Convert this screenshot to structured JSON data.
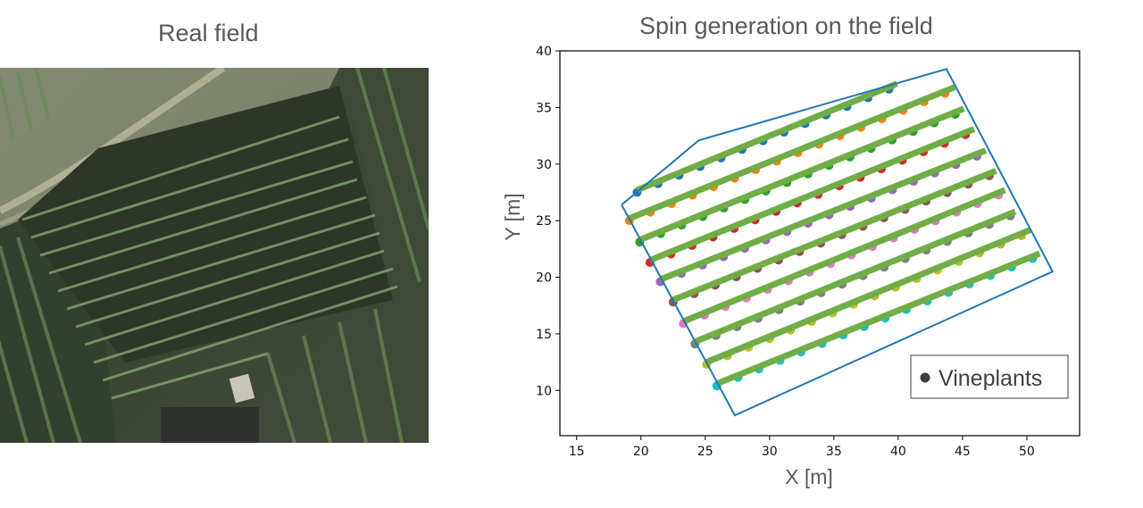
{
  "panels": {
    "left": {
      "title": "Real field",
      "image_description": "aerial satellite photo of vineyard with diagonal rows"
    },
    "right": {
      "title": "Spin generation on the field"
    }
  },
  "chart_data": {
    "type": "scatter",
    "title": "Spin generation on the field",
    "xlabel": "X [m]",
    "ylabel": "Y [m]",
    "xlim": [
      13.7,
      54.1
    ],
    "ylim": [
      6.0,
      40.0
    ],
    "xticks": [
      15,
      20,
      25,
      30,
      35,
      40,
      45,
      50
    ],
    "yticks": [
      10,
      15,
      20,
      25,
      30,
      35,
      40
    ],
    "grid": false,
    "legend": {
      "position": "lower right",
      "entries": [
        {
          "label": "Vineplants",
          "marker": "circle",
          "color": "#404040"
        }
      ]
    },
    "field_boundary": {
      "color": "#1f77b4",
      "vertices": [
        [
          18.5,
          26.4
        ],
        [
          24.5,
          32.1
        ],
        [
          43.75,
          38.4
        ],
        [
          52.0,
          20.5
        ],
        [
          27.3,
          7.8
        ],
        [
          18.5,
          26.4
        ]
      ]
    },
    "row_line_color": "#70ad47",
    "point_spacing_m": 1.8,
    "rows": [
      {
        "start": [
          19.7,
          27.7
        ],
        "end": [
          39.9,
          37.1
        ],
        "color": "#1f77b4"
      },
      {
        "start": [
          19.1,
          25.2
        ],
        "end": [
          44.4,
          36.8
        ],
        "color": "#ff7f0e"
      },
      {
        "start": [
          19.9,
          23.3
        ],
        "end": [
          45.1,
          34.9
        ],
        "color": "#2ca02c"
      },
      {
        "start": [
          20.7,
          21.5
        ],
        "end": [
          45.9,
          33.1
        ],
        "color": "#d62728"
      },
      {
        "start": [
          21.5,
          19.8
        ],
        "end": [
          46.8,
          31.2
        ],
        "color": "#9467bd"
      },
      {
        "start": [
          22.5,
          18.0
        ],
        "end": [
          47.6,
          29.4
        ],
        "color": "#8c564b"
      },
      {
        "start": [
          23.3,
          16.1
        ],
        "end": [
          48.3,
          27.7
        ],
        "color": "#e377c2"
      },
      {
        "start": [
          24.2,
          14.3
        ],
        "end": [
          49.1,
          25.8
        ],
        "color": "#7f7f7f"
      },
      {
        "start": [
          25.1,
          12.5
        ],
        "end": [
          50.3,
          24.2
        ],
        "color": "#bcbd22"
      },
      {
        "start": [
          25.9,
          10.6
        ],
        "end": [
          51.0,
          22.1
        ],
        "color": "#17becf"
      }
    ]
  }
}
